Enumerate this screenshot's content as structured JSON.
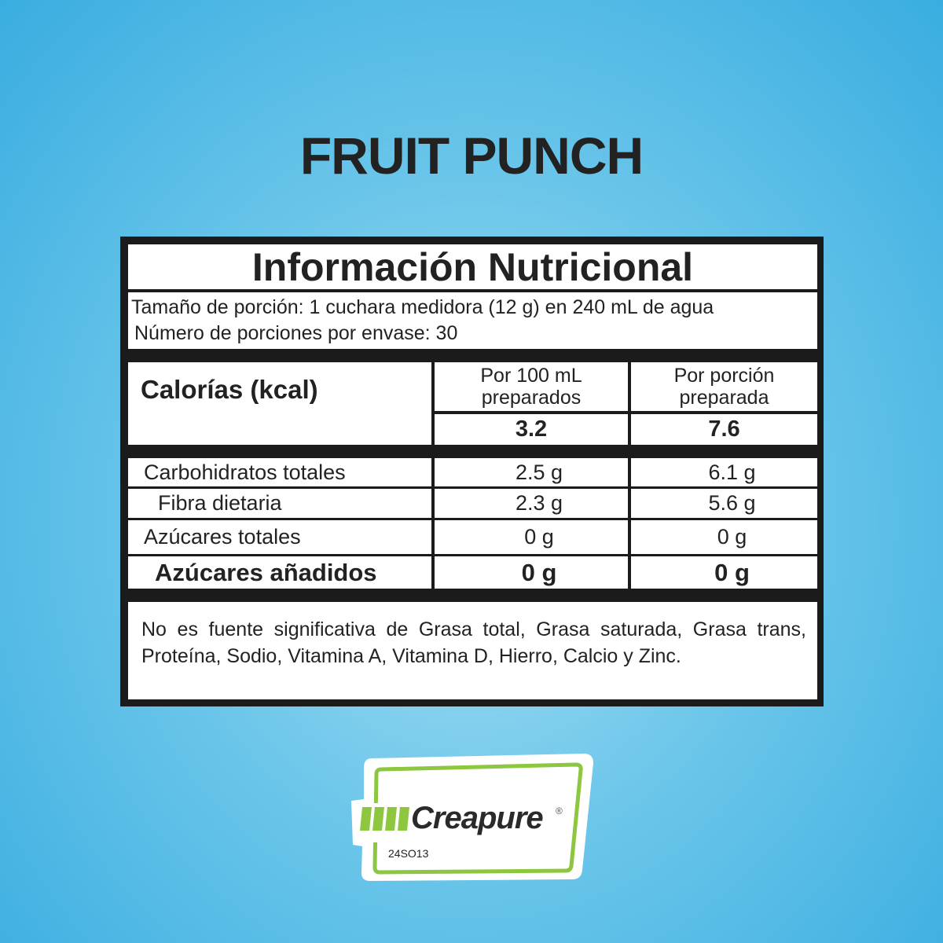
{
  "product_title": "FRUIT PUNCH",
  "label": {
    "heading": "Información Nutricional",
    "serving_size": "Tamaño de porción: 1 cuchara medidora (12 g) en 240 mL de agua",
    "servings_per_container": "Número de porciones por envase: 30",
    "calories_label": "Calorías (kcal)",
    "columns": [
      "Por 100 mL preparados",
      "Por porción preparada"
    ],
    "calories": [
      "3.2",
      "7.6"
    ],
    "rows": [
      {
        "name": "Carbohidratos totales",
        "per100": "2.5 g",
        "perServing": "6.1 g"
      },
      {
        "name": "Fibra dietaria",
        "per100": "2.3 g",
        "perServing": "5.6 g"
      },
      {
        "name": "Azúcares totales",
        "per100": "0 g",
        "perServing": "0 g"
      },
      {
        "name": "Azúcares añadidos",
        "per100": "0 g",
        "perServing": "0 g"
      }
    ],
    "footnote": "No es fuente significativa de Grasa total, Grasa saturada, Grasa trans, Proteína, Sodio, Vitamina A, Vitamina D, Hierro, Calcio y Zinc."
  },
  "badge": {
    "brand": "Creapure",
    "registered": "®",
    "code": "24SO13",
    "color": "#8dc63f"
  }
}
